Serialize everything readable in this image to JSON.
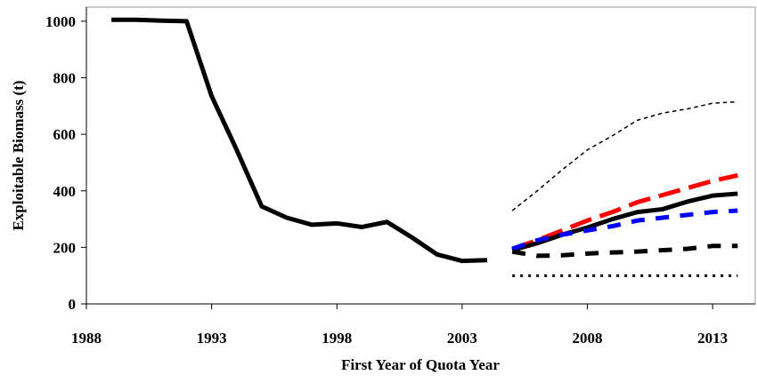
{
  "chart_data": {
    "type": "line",
    "x_label": "First Year of Quota Year",
    "y_label": "Exploitable Biomass (t)",
    "xlim": [
      1988,
      2014.7
    ],
    "ylim": [
      0,
      1050
    ],
    "xticks": [
      1988,
      1993,
      1998,
      2003,
      2008,
      2013
    ],
    "yticks": [
      0,
      200,
      400,
      600,
      800,
      1000
    ],
    "series": [
      {
        "color": "#000000",
        "width": 5,
        "dash": "solid",
        "x": [
          1989,
          1990,
          1991,
          1992,
          1993,
          1994,
          1995,
          1996,
          1997,
          1998,
          1999,
          2000,
          2001,
          2002,
          2003,
          2004
        ],
        "values": [
          1005,
          1005,
          1002,
          1000,
          735,
          545,
          345,
          305,
          280,
          285,
          272,
          290,
          235,
          175,
          152,
          155
        ]
      },
      {
        "color": "#000000",
        "width": 1.5,
        "dash": "dashed",
        "x": [
          2005,
          2006,
          2007,
          2008,
          2009,
          2010,
          2011,
          2012,
          2013,
          2014
        ],
        "values": [
          330,
          400,
          475,
          545,
          595,
          650,
          675,
          690,
          710,
          715
        ]
      },
      {
        "color": "#ff0000",
        "width": 5,
        "dash": "long-dashed",
        "x": [
          2005,
          2006,
          2007,
          2008,
          2009,
          2010,
          2011,
          2012,
          2013,
          2014
        ],
        "values": [
          195,
          225,
          260,
          295,
          325,
          360,
          385,
          410,
          435,
          455
        ]
      },
      {
        "color": "#000000",
        "width": 5,
        "dash": "solid",
        "x": [
          2005,
          2006,
          2007,
          2008,
          2009,
          2010,
          2011,
          2012,
          2013,
          2014
        ],
        "values": [
          190,
          215,
          245,
          270,
          300,
          325,
          335,
          362,
          383,
          390
        ]
      },
      {
        "color": "#0000ff",
        "width": 5,
        "dash": "dashed",
        "x": [
          2005,
          2006,
          2007,
          2008,
          2009,
          2010,
          2011,
          2012,
          2013,
          2014
        ],
        "values": [
          195,
          225,
          245,
          260,
          275,
          295,
          305,
          315,
          325,
          330
        ]
      },
      {
        "color": "#000000",
        "width": 5,
        "dash": "dashed",
        "x": [
          2005,
          2006,
          2007,
          2008,
          2009,
          2010,
          2011,
          2012,
          2013,
          2014
        ],
        "values": [
          185,
          170,
          172,
          178,
          182,
          185,
          190,
          195,
          205,
          205
        ]
      },
      {
        "color": "#000000",
        "width": 3,
        "dash": "dotted",
        "x": [
          2005,
          2006,
          2007,
          2008,
          2009,
          2010,
          2011,
          2012,
          2013,
          2014
        ],
        "values": [
          100,
          100,
          100,
          100,
          100,
          100,
          100,
          100,
          100,
          100
        ]
      }
    ]
  }
}
